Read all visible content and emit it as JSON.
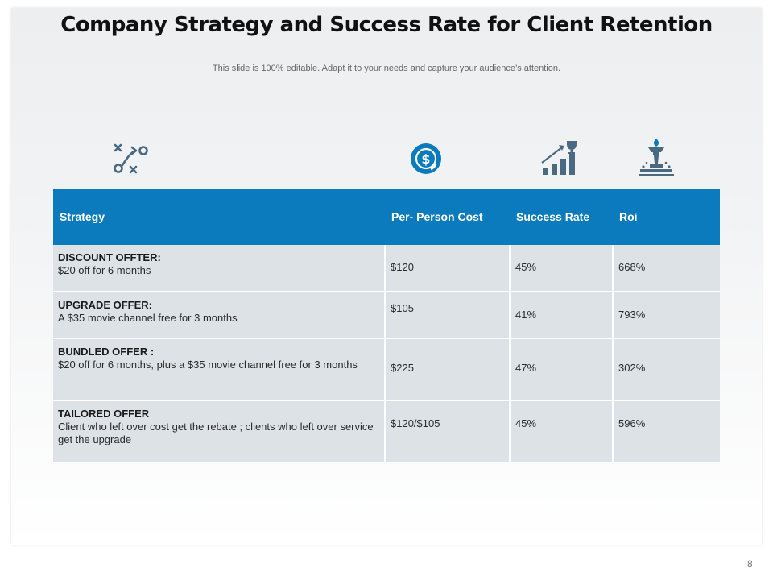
{
  "slide": {
    "title": "Company Strategy and Success Rate for Client Retention",
    "subtitle": "This slide is 100% editable. Adapt it to your needs and capture your audience’s attention.",
    "page_number": "8"
  },
  "icons": {
    "strategy": "strategy-play-icon",
    "cost": "dollar-coin-icon",
    "success": "growth-chart-trophy-icon",
    "roi": "torch-award-icon",
    "accent_color": "#4a6a82"
  },
  "table": {
    "header_color": "#0c7bbd",
    "columns": [
      "Strategy",
      "Per- Person Cost",
      "Success Rate",
      "Roi"
    ],
    "rows": [
      {
        "name": "DISCOUNT OFFTER:",
        "desc": "$20 off for 6 months",
        "cost": "$120",
        "success": "45%",
        "roi": "668%"
      },
      {
        "name": "UPGRADE OFFER:",
        "desc": "A $35 movie channel free for 3 months",
        "cost": "$105",
        "success": "41%",
        "roi": "793%"
      },
      {
        "name": "BUNDLED OFFER :",
        "desc": "$20 off for 6 months, plus a $35 movie channel free for 3 months",
        "cost": "$225",
        "success": "47%",
        "roi": "302%"
      },
      {
        "name": "TAILORED OFFER",
        "desc": "Client who left over cost get the rebate ; clients who left over service get the upgrade",
        "cost": "$120/$105",
        "success": "45%",
        "roi": "596%"
      }
    ]
  }
}
